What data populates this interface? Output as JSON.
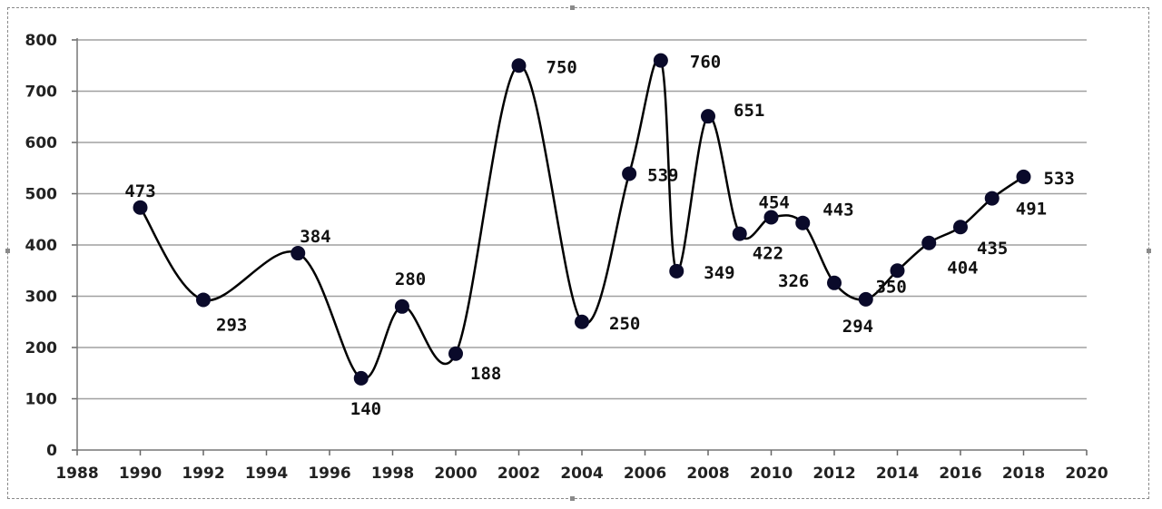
{
  "chart_data": {
    "type": "line",
    "title": "",
    "xlabel": "",
    "ylabel": "",
    "xlim": [
      1988,
      2020
    ],
    "ylim": [
      0,
      800
    ],
    "x_ticks": [
      1988,
      1990,
      1992,
      1994,
      1996,
      1998,
      2000,
      2002,
      2004,
      2006,
      2008,
      2010,
      2012,
      2014,
      2016,
      2018,
      2020
    ],
    "y_ticks": [
      0,
      100,
      200,
      300,
      400,
      500,
      600,
      700,
      800
    ],
    "grid": "horizontal",
    "legend": "none",
    "smooth": true,
    "line_color": "#000000",
    "marker_color": "#0a0a2a",
    "grid_color": "#a0a0a0",
    "series": [
      {
        "points": [
          {
            "x": 1990,
            "y": 473,
            "label": "473"
          },
          {
            "x": 1992,
            "y": 293,
            "label": "293"
          },
          {
            "x": 1995,
            "y": 384,
            "label": "384"
          },
          {
            "x": 1997,
            "y": 140,
            "label": "140"
          },
          {
            "x": 1998.3,
            "y": 280,
            "label": "280"
          },
          {
            "x": 2000,
            "y": 188,
            "label": "188"
          },
          {
            "x": 2002,
            "y": 750,
            "label": "750"
          },
          {
            "x": 2004,
            "y": 250,
            "label": "250"
          },
          {
            "x": 2005.5,
            "y": 539,
            "label": "539"
          },
          {
            "x": 2006.5,
            "y": 760,
            "label": "760"
          },
          {
            "x": 2007,
            "y": 349,
            "label": "349"
          },
          {
            "x": 2008,
            "y": 651,
            "label": "651"
          },
          {
            "x": 2009,
            "y": 422,
            "label": "422"
          },
          {
            "x": 2010,
            "y": 454,
            "label": "454"
          },
          {
            "x": 2011,
            "y": 443,
            "label": "443"
          },
          {
            "x": 2012,
            "y": 326,
            "label": "326"
          },
          {
            "x": 2013,
            "y": 294,
            "label": "294"
          },
          {
            "x": 2014,
            "y": 350,
            "label": "350"
          },
          {
            "x": 2015,
            "y": 404,
            "label": "404"
          },
          {
            "x": 2016,
            "y": 435,
            "label": "435"
          },
          {
            "x": 2017,
            "y": 491,
            "label": "491"
          },
          {
            "x": 2018,
            "y": 533,
            "label": "533"
          }
        ]
      }
    ]
  }
}
